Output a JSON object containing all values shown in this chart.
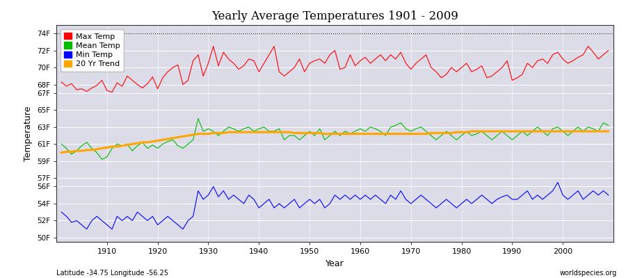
{
  "title": "Yearly Average Temperatures 1901 - 2009",
  "xlabel": "Year",
  "ylabel": "Temperature",
  "lat_lon_label": "Latitude -34.75 Longitude -56.25",
  "watermark": "worldspecies.org",
  "year_start": 1901,
  "year_end": 2009,
  "yticks": [
    "50F",
    "52F",
    "54F",
    "56F",
    "57F",
    "59F",
    "61F",
    "63F",
    "65F",
    "67F",
    "68F",
    "70F",
    "72F",
    "74F"
  ],
  "ytick_vals": [
    50,
    52,
    54,
    56,
    57,
    59,
    61,
    63,
    65,
    67,
    68,
    70,
    72,
    74
  ],
  "ylim": [
    49.5,
    75.0
  ],
  "dotted_line_y": 74,
  "fig_bg_color": "#ffffff",
  "plot_bg_color": "#dcdce8",
  "max_color": "#ff0000",
  "mean_color": "#00bb00",
  "min_color": "#0000ff",
  "trend_color": "#ffa500",
  "legend_labels": [
    "Max Temp",
    "Mean Temp",
    "Min Temp",
    "20 Yr Trend"
  ],
  "max_temps": [
    68.3,
    67.8,
    68.1,
    67.4,
    67.5,
    67.2,
    67.6,
    67.9,
    68.5,
    67.3,
    67.1,
    68.2,
    67.8,
    69.0,
    68.5,
    68.0,
    67.6,
    68.1,
    68.9,
    67.5,
    68.8,
    69.5,
    70.0,
    70.3,
    68.0,
    68.5,
    70.8,
    71.5,
    69.0,
    70.5,
    72.5,
    70.2,
    71.8,
    71.0,
    70.5,
    69.8,
    70.2,
    71.0,
    70.8,
    69.5,
    70.5,
    71.5,
    72.5,
    69.5,
    69.0,
    69.5,
    70.0,
    71.0,
    69.5,
    70.5,
    70.8,
    71.0,
    70.5,
    71.5,
    72.0,
    69.8,
    70.0,
    71.5,
    70.2,
    70.8,
    71.2,
    70.5,
    71.0,
    71.5,
    70.8,
    71.5,
    71.0,
    71.8,
    70.5,
    69.8,
    70.5,
    71.0,
    71.5,
    70.0,
    69.5,
    68.8,
    69.2,
    70.0,
    69.5,
    70.0,
    70.5,
    69.5,
    69.8,
    70.2,
    68.8,
    69.0,
    69.5,
    70.0,
    70.8,
    68.5,
    68.8,
    69.2,
    70.5,
    70.0,
    70.8,
    71.0,
    70.5,
    71.5,
    71.8,
    71.0,
    70.5,
    70.8,
    71.2,
    71.5,
    72.5,
    71.8,
    71.0,
    71.5,
    72.0
  ],
  "mean_temps": [
    61.0,
    60.5,
    59.8,
    60.2,
    60.8,
    61.2,
    60.5,
    60.0,
    59.2,
    59.5,
    60.5,
    61.0,
    60.8,
    61.0,
    60.2,
    60.8,
    61.2,
    60.5,
    60.9,
    60.5,
    61.0,
    61.3,
    61.5,
    60.8,
    60.5,
    61.0,
    61.5,
    64.0,
    62.5,
    62.8,
    62.5,
    62.0,
    62.5,
    63.0,
    62.8,
    62.5,
    62.8,
    63.0,
    62.5,
    62.8,
    63.0,
    62.5,
    62.5,
    62.8,
    61.5,
    62.0,
    62.0,
    61.5,
    62.0,
    62.5,
    62.0,
    62.8,
    61.5,
    62.0,
    62.5,
    62.0,
    62.5,
    62.2,
    62.5,
    62.8,
    62.5,
    63.0,
    62.8,
    62.5,
    62.0,
    63.0,
    63.2,
    63.5,
    62.8,
    62.5,
    62.8,
    63.0,
    62.5,
    62.0,
    61.5,
    62.0,
    62.5,
    62.0,
    61.5,
    62.0,
    62.5,
    62.0,
    62.2,
    62.5,
    62.0,
    61.5,
    62.0,
    62.5,
    62.0,
    61.5,
    62.0,
    62.5,
    62.0,
    62.5,
    63.0,
    62.5,
    62.0,
    62.8,
    63.0,
    62.5,
    62.0,
    62.5,
    63.0,
    62.5,
    63.0,
    62.8,
    62.5,
    63.5,
    63.2
  ],
  "min_temps": [
    53.0,
    52.5,
    51.8,
    52.0,
    51.5,
    51.0,
    52.0,
    52.5,
    52.0,
    51.5,
    51.0,
    52.5,
    52.0,
    52.5,
    52.0,
    53.0,
    52.5,
    52.0,
    52.5,
    51.5,
    52.0,
    52.5,
    52.0,
    51.5,
    51.0,
    52.0,
    52.5,
    55.5,
    54.5,
    55.0,
    56.0,
    54.8,
    55.5,
    54.5,
    55.0,
    54.5,
    54.0,
    55.0,
    54.5,
    53.5,
    54.0,
    54.5,
    53.5,
    54.0,
    53.5,
    54.0,
    54.5,
    53.5,
    54.0,
    54.5,
    54.0,
    54.5,
    53.5,
    54.0,
    55.0,
    54.5,
    55.0,
    54.5,
    55.0,
    54.5,
    55.0,
    54.5,
    55.0,
    54.5,
    54.0,
    55.0,
    54.5,
    55.5,
    54.5,
    54.0,
    54.5,
    55.0,
    54.5,
    54.0,
    53.5,
    54.0,
    54.5,
    54.0,
    53.5,
    54.0,
    54.5,
    54.0,
    54.5,
    55.0,
    54.5,
    54.0,
    54.5,
    54.8,
    55.0,
    54.5,
    54.5,
    55.0,
    55.5,
    54.5,
    55.0,
    54.5,
    55.0,
    55.5,
    56.5,
    55.0,
    54.5,
    55.0,
    55.5,
    54.5,
    55.0,
    55.5,
    55.0,
    55.5,
    55.0
  ],
  "trend_vals": [
    60.0,
    60.1,
    60.1,
    60.2,
    60.2,
    60.3,
    60.3,
    60.4,
    60.5,
    60.6,
    60.7,
    60.7,
    60.8,
    60.9,
    61.0,
    61.1,
    61.2,
    61.2,
    61.3,
    61.4,
    61.5,
    61.6,
    61.7,
    61.8,
    61.9,
    62.0,
    62.1,
    62.2,
    62.2,
    62.2,
    62.3,
    62.3,
    62.3,
    62.4,
    62.4,
    62.4,
    62.4,
    62.4,
    62.4,
    62.4,
    62.4,
    62.4,
    62.4,
    62.4,
    62.4,
    62.4,
    62.3,
    62.3,
    62.3,
    62.3,
    62.3,
    62.3,
    62.2,
    62.2,
    62.2,
    62.2,
    62.2,
    62.2,
    62.2,
    62.2,
    62.2,
    62.2,
    62.2,
    62.2,
    62.2,
    62.2,
    62.2,
    62.2,
    62.2,
    62.2,
    62.2,
    62.2,
    62.2,
    62.3,
    62.3,
    62.3,
    62.3,
    62.3,
    62.4,
    62.4,
    62.4,
    62.5,
    62.5,
    62.5,
    62.5,
    62.5,
    62.5,
    62.5,
    62.5,
    62.5,
    62.5,
    62.5,
    62.5,
    62.5,
    62.5,
    62.5,
    62.5,
    62.5,
    62.5,
    62.5,
    62.5,
    62.5,
    62.5,
    62.5,
    62.5,
    62.5,
    62.5,
    62.5,
    62.5
  ]
}
